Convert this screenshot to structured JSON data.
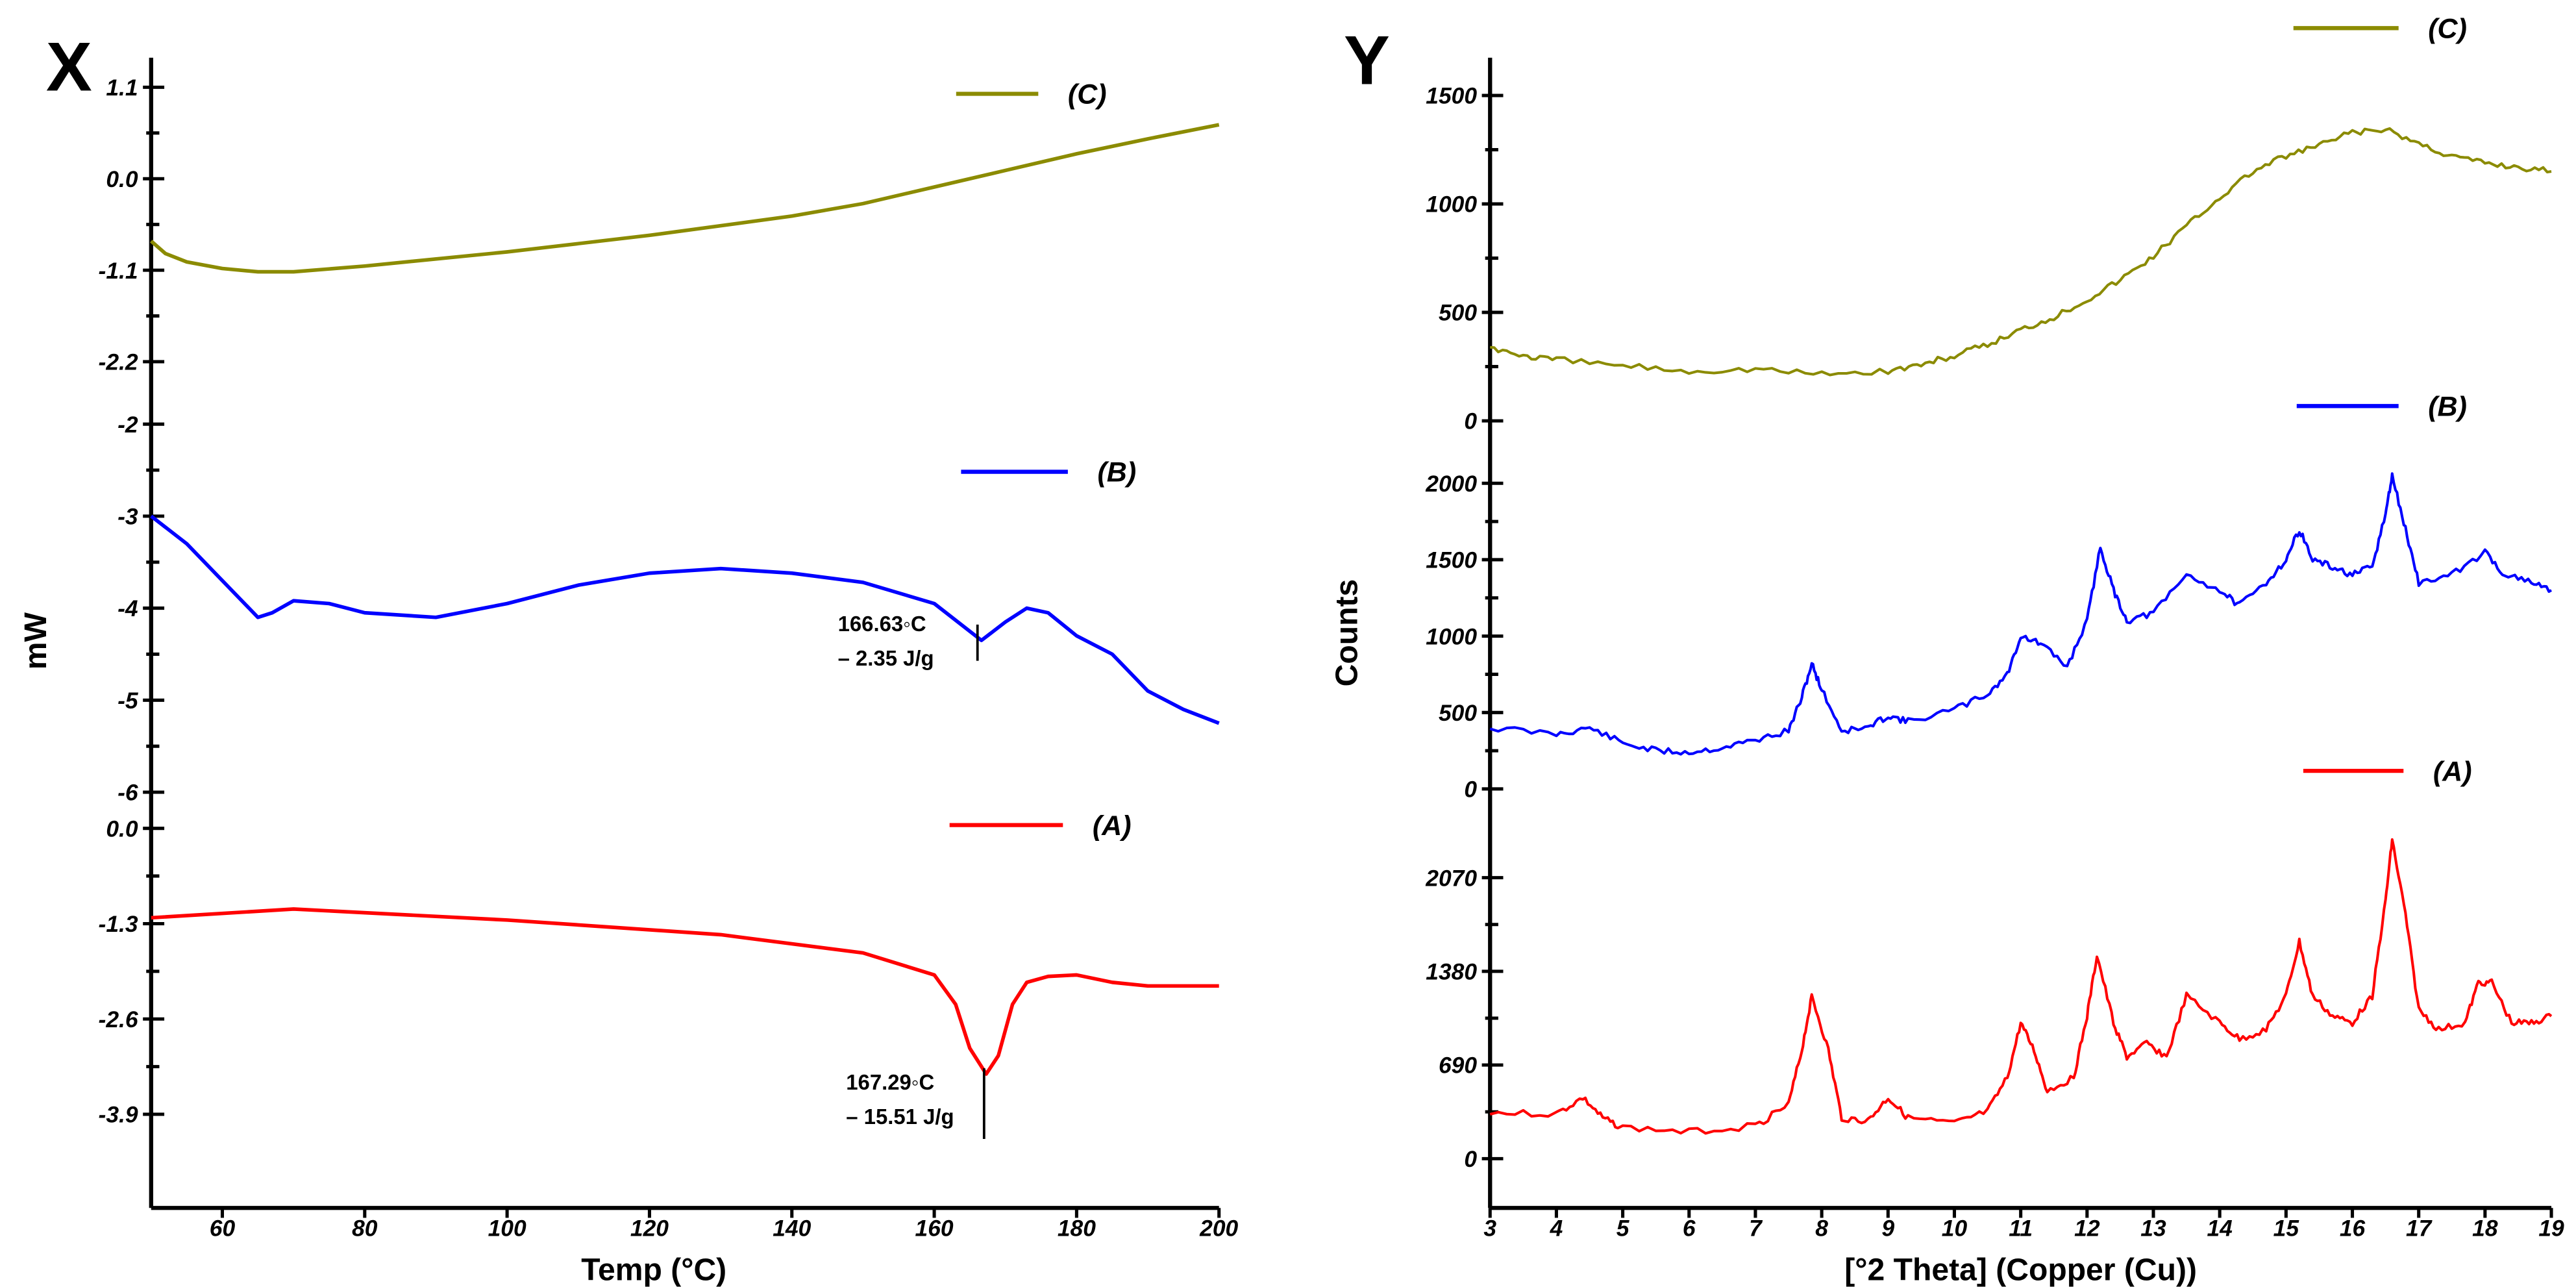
{
  "chart_data": [
    {
      "type": "line",
      "panel_label": "X",
      "xlabel": "Temp (°C)",
      "ylabel": "mW",
      "xlim": [
        50,
        200
      ],
      "xticks": [
        60,
        80,
        100,
        120,
        140,
        160,
        180,
        200
      ],
      "subplots": [
        {
          "name": "(C)",
          "color": "#8B8B00",
          "ylim": [
            -2.55,
            1.45
          ],
          "yticks": [
            "1.1",
            "0.0",
            "-1.1",
            "-2.2"
          ],
          "ytick_values": [
            1.1,
            0.0,
            -1.1,
            -2.2
          ],
          "x": [
            50,
            52,
            55,
            60,
            65,
            70,
            80,
            100,
            120,
            140,
            150,
            160,
            170,
            180,
            190,
            200
          ],
          "y": [
            -0.75,
            -0.9,
            -1.0,
            -1.08,
            -1.12,
            -1.12,
            -1.05,
            -0.88,
            -0.68,
            -0.45,
            -0.3,
            -0.1,
            0.1,
            0.3,
            0.48,
            0.65
          ]
        },
        {
          "name": "(B)",
          "color": "#0000FF",
          "ylim": [
            -6.3,
            -1.7
          ],
          "yticks": [
            "-2",
            "-3",
            "-4",
            "-5",
            "-6"
          ],
          "ytick_values": [
            -2,
            -3,
            -4,
            -5,
            -6
          ],
          "x": [
            50,
            55,
            60,
            65,
            67,
            70,
            75,
            80,
            90,
            100,
            110,
            120,
            130,
            140,
            150,
            160,
            166.63,
            170,
            173,
            176,
            180,
            185,
            190,
            195,
            200
          ],
          "y": [
            -3,
            -3.3,
            -3.7,
            -4.1,
            -4.05,
            -3.92,
            -3.95,
            -4.05,
            -4.1,
            -3.95,
            -3.75,
            -3.62,
            -3.57,
            -3.62,
            -3.72,
            -3.95,
            -4.35,
            -4.15,
            -4.0,
            -4.05,
            -4.3,
            -4.5,
            -4.9,
            -5.1,
            -5.25
          ],
          "annotation": {
            "x": 166.63,
            "lines": [
              "166.63◦C",
              "– 2.35 J/g"
            ]
          }
        },
        {
          "name": "(A)",
          "color": "#FF0000",
          "ylim": [
            -5.15,
            0.1
          ],
          "yticks": [
            "0.0",
            "-1.3",
            "-2.6",
            "-3.9"
          ],
          "ytick_values": [
            0.0,
            -1.3,
            -2.6,
            -3.9
          ],
          "x": [
            50,
            70,
            100,
            130,
            150,
            160,
            163,
            165,
            167.29,
            169,
            171,
            173,
            176,
            180,
            185,
            190,
            200
          ],
          "y": [
            -1.22,
            -1.1,
            -1.25,
            -1.45,
            -1.7,
            -2.0,
            -2.4,
            -3.0,
            -3.35,
            -3.1,
            -2.4,
            -2.1,
            -2.02,
            -2.0,
            -2.1,
            -2.15,
            -2.15
          ],
          "annotation": {
            "x": 167.29,
            "lines": [
              "167.29◦C",
              "– 15.51 J/g"
            ]
          }
        }
      ]
    },
    {
      "type": "line",
      "panel_label": "Y",
      "xlabel": "[°2 Theta] (Copper (Cu))",
      "ylabel": "Counts",
      "xlim": [
        3,
        19
      ],
      "xticks": [
        3,
        4,
        5,
        6,
        7,
        8,
        9,
        10,
        11,
        12,
        13,
        14,
        15,
        16,
        17,
        18,
        19
      ],
      "subplots": [
        {
          "name": "(C)",
          "color": "#8B8B00",
          "ylim": [
            0,
            1700
          ],
          "yticks": [
            "0",
            "500",
            "1000",
            "1500"
          ],
          "ytick_values": [
            0,
            500,
            1000,
            1500
          ],
          "x": [
            3,
            3.5,
            4,
            5,
            6,
            7,
            8,
            9,
            9.5,
            10,
            10.5,
            11,
            11.5,
            12,
            12.5,
            13,
            13.5,
            14,
            14.5,
            15,
            15.5,
            16,
            16.5,
            17,
            17.5,
            18,
            18.5,
            19
          ],
          "y": [
            340,
            300,
            280,
            255,
            230,
            240,
            215,
            230,
            260,
            300,
            350,
            420,
            480,
            560,
            650,
            760,
            900,
            1030,
            1150,
            1220,
            1270,
            1330,
            1340,
            1280,
            1220,
            1190,
            1170,
            1150
          ]
        },
        {
          "name": "(B)",
          "color": "#0000FF",
          "ylim": [
            0,
            2250
          ],
          "yticks": [
            "0",
            "500",
            "1000",
            "1500",
            "2000"
          ],
          "ytick_values": [
            0,
            500,
            1000,
            1500,
            2000
          ],
          "x": [
            3,
            4,
            4.5,
            5,
            5.5,
            6,
            6.5,
            7,
            7.5,
            7.7,
            7.85,
            8,
            8.3,
            8.7,
            9,
            9.3,
            10,
            10.5,
            10.8,
            11,
            11.3,
            11.7,
            12,
            12.2,
            12.4,
            12.6,
            13,
            13.5,
            14,
            14.3,
            14.7,
            15,
            15.2,
            15.4,
            15.7,
            16,
            16.3,
            16.5,
            16.6,
            16.8,
            17,
            17.5,
            18,
            18.3,
            18.7,
            19
          ],
          "y": [
            400,
            360,
            400,
            300,
            250,
            240,
            270,
            320,
            380,
            600,
            820,
            650,
            380,
            400,
            480,
            440,
            520,
            620,
            750,
            1000,
            950,
            800,
            1100,
            1580,
            1300,
            1100,
            1150,
            1400,
            1300,
            1200,
            1350,
            1500,
            1700,
            1500,
            1450,
            1400,
            1450,
            1800,
            2050,
            1700,
            1350,
            1400,
            1550,
            1400,
            1350,
            1300
          ]
        },
        {
          "name": "(A)",
          "color": "#FF0000",
          "ylim": [
            0,
            2500
          ],
          "yticks": [
            "0",
            "690",
            "1380",
            "2070"
          ],
          "ytick_values": [
            0,
            690,
            1380,
            2070
          ],
          "x": [
            3,
            4,
            4.4,
            4.7,
            5,
            6,
            7,
            7.5,
            7.7,
            7.85,
            8.1,
            8.3,
            8.7,
            9,
            9.3,
            10,
            10.5,
            10.8,
            11,
            11.2,
            11.4,
            11.8,
            12,
            12.15,
            12.4,
            12.6,
            12.9,
            13.2,
            13.5,
            14,
            14.3,
            14.7,
            15,
            15.2,
            15.4,
            15.7,
            16,
            16.3,
            16.5,
            16.6,
            16.8,
            17,
            17.3,
            17.7,
            17.9,
            18.1,
            18.4,
            18.7,
            19
          ],
          "y": [
            340,
            330,
            450,
            300,
            230,
            200,
            240,
            400,
            800,
            1200,
            800,
            300,
            280,
            450,
            300,
            260,
            350,
            600,
            1000,
            800,
            500,
            600,
            1050,
            1500,
            1000,
            750,
            850,
            750,
            1200,
            1000,
            880,
            950,
            1200,
            1600,
            1200,
            1050,
            1000,
            1200,
            1900,
            2350,
            1800,
            1100,
            950,
            1000,
            1300,
            1300,
            1000,
            1000,
            1050
          ]
        }
      ]
    }
  ]
}
